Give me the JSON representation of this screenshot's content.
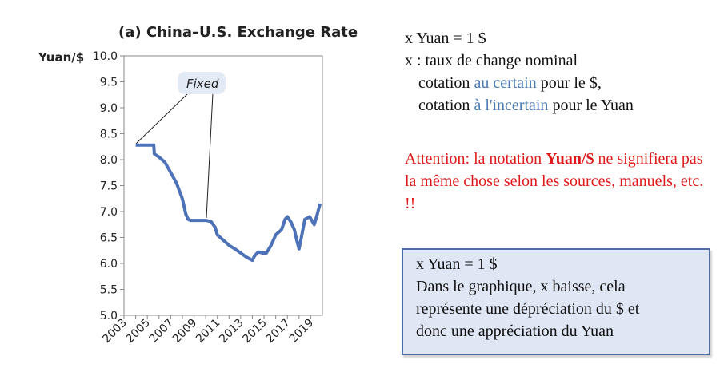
{
  "chart_data": {
    "type": "line",
    "title": "(a) China–U.S. Exchange Rate",
    "ylabel": "Yuan/$",
    "xlabel": "",
    "ylim": [
      5.0,
      10.0
    ],
    "xlim": [
      2003,
      2020
    ],
    "yticks": [
      "10.0",
      "9.5",
      "9.0",
      "8.5",
      "8.0",
      "7.5",
      "7.0",
      "6.5",
      "6.0",
      "5.5",
      "5.0"
    ],
    "xticks": [
      "2003",
      "2005",
      "2007",
      "2009",
      "2011",
      "2013",
      "2015",
      "2017",
      "2019"
    ],
    "annotation": "Fixed",
    "line_color": "#4e72b8",
    "series": [
      {
        "x": [
          2004.0,
          2005.0,
          2005.55,
          2005.6,
          2006.0,
          2006.5,
          2007.0,
          2007.5,
          2008.0,
          2008.3,
          2008.5,
          2008.7,
          2009.0,
          2009.5,
          2010.0,
          2010.45,
          2010.8,
          2011.0,
          2011.5,
          2012.0,
          2012.5,
          2013.0,
          2013.5,
          2014.0,
          2014.2,
          2014.5,
          2014.9,
          2015.2,
          2015.6,
          2015.8,
          2016.0,
          2016.5,
          2016.8,
          2017.0,
          2017.3,
          2017.6,
          2017.8,
          2018.0,
          2018.2,
          2018.5,
          2018.9,
          2019.3,
          2019.5,
          2019.8
        ],
        "y": [
          8.28,
          8.28,
          8.28,
          8.11,
          8.05,
          7.95,
          7.75,
          7.55,
          7.25,
          6.95,
          6.85,
          6.83,
          6.83,
          6.83,
          6.83,
          6.81,
          6.7,
          6.55,
          6.45,
          6.35,
          6.28,
          6.2,
          6.12,
          6.06,
          6.15,
          6.22,
          6.2,
          6.2,
          6.35,
          6.45,
          6.55,
          6.65,
          6.85,
          6.9,
          6.8,
          6.65,
          6.45,
          6.28,
          6.5,
          6.85,
          6.9,
          6.75,
          6.9,
          7.15
        ]
      }
    ]
  },
  "text": {
    "line1": "x Yuan = 1 $",
    "line2": "x : taux de change nominal",
    "line3a": "cotation ",
    "line3b": "au certain",
    "line3c": " pour le $,",
    "line4a": "cotation ",
    "line4b": "à l'incertain",
    "line4c": " pour le Yuan",
    "warn_a": "Attention: la notation ",
    "warn_b": "Yuan/$",
    "warn_c": " ne signifiera pas la même chose selon les sources, manuels, etc. !!",
    "box_line1": "x Yuan = 1 $",
    "box_line2": "Dans le graphique, x baisse, cela",
    "box_line3": "représente une dépréciation du $ et",
    "box_line4": "donc une appréciation du Yuan"
  },
  "colors": {
    "accent_blue": "#4a7ab5",
    "warning_red": "#e01a1a",
    "box_fill": "#dfe6f4",
    "box_border": "#4c6da8"
  }
}
